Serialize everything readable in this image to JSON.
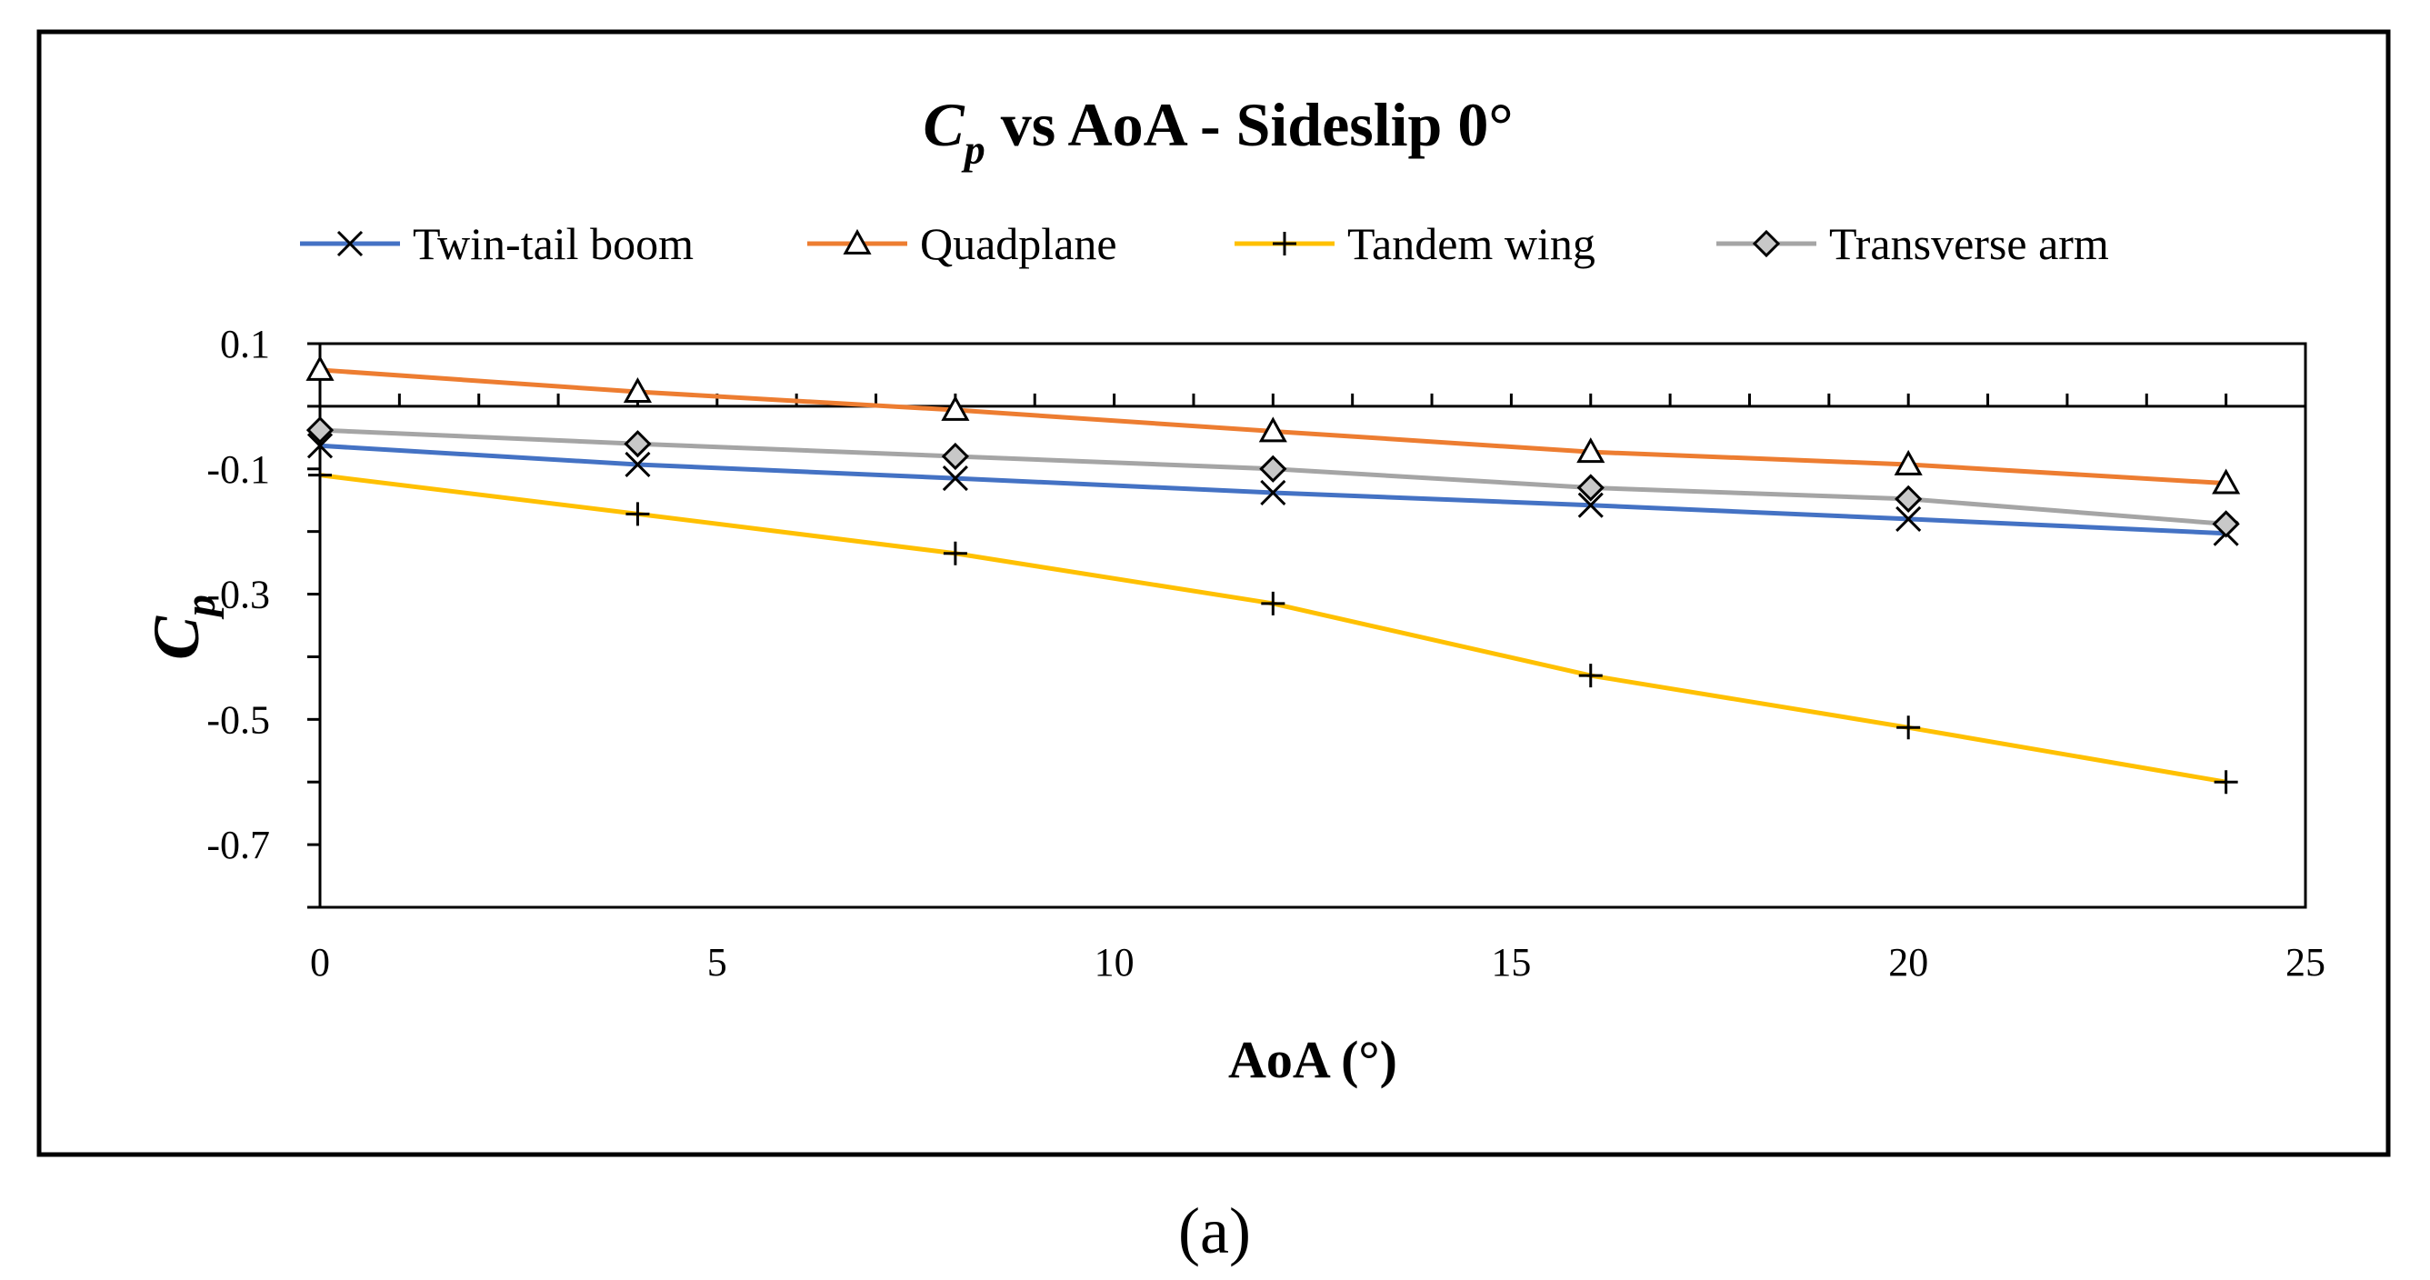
{
  "chart_data": {
    "type": "line",
    "title": {
      "symbol": "C",
      "subscript": "p",
      "rest": " vs AoA - Sideslip 0°"
    },
    "xlabel": "AoA (°)",
    "ylabel": {
      "symbol": "C",
      "subscript": "p"
    },
    "xlim": [
      0,
      25
    ],
    "ylim": [
      -0.8,
      0.1
    ],
    "xticks": [
      0,
      5,
      10,
      15,
      20,
      25
    ],
    "xtick_labels": [
      "0",
      "5",
      "10",
      "15",
      "20",
      "25"
    ],
    "yticks": [
      0.1,
      -0.1,
      -0.3,
      -0.5,
      -0.7
    ],
    "ytick_labels": [
      "0.1",
      "-0.1",
      "-0.3",
      "-0.5",
      "-0.7"
    ],
    "x": [
      0,
      4,
      8,
      12,
      16,
      20,
      24
    ],
    "series": [
      {
        "name": "Twin-tail boom",
        "color": "#4472C4",
        "marker": "x",
        "values": [
          -0.063,
          -0.093,
          -0.115,
          -0.138,
          -0.158,
          -0.18,
          -0.203
        ]
      },
      {
        "name": "Quadplane",
        "color": "#ED7D31",
        "marker": "triangle",
        "values": [
          0.058,
          0.023,
          -0.006,
          -0.04,
          -0.073,
          -0.093,
          -0.123
        ]
      },
      {
        "name": "Tandem wing",
        "color": "#FFC000",
        "marker": "plus",
        "values": [
          -0.11,
          -0.172,
          -0.235,
          -0.315,
          -0.43,
          -0.513,
          -0.6
        ]
      },
      {
        "name": "Transverse arm",
        "color": "#A5A5A5",
        "marker": "diamond",
        "values": [
          -0.038,
          -0.06,
          -0.08,
          -0.1,
          -0.13,
          -0.148,
          -0.188
        ]
      }
    ],
    "legend_position": "top"
  },
  "caption": "(a)"
}
